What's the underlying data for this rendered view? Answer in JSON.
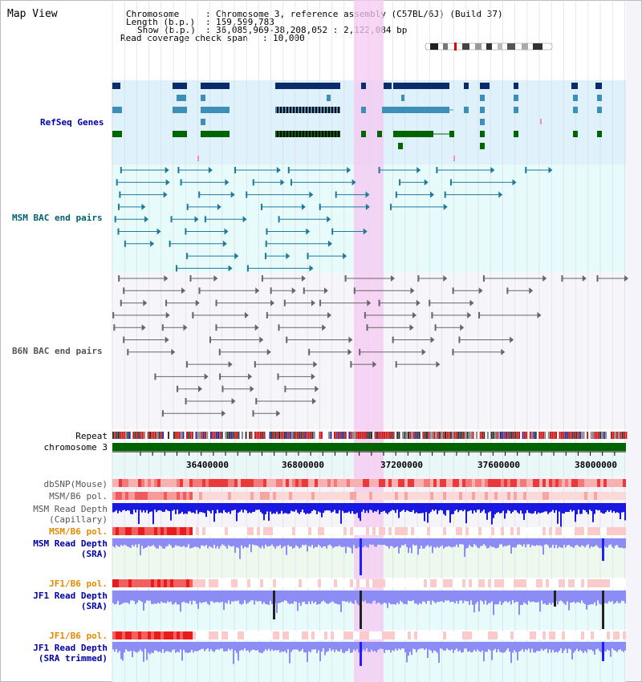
{
  "header": {
    "title": "Map View",
    "chromosome_label": "Chromosome",
    "chromosome_value": "Chromosome 3, reference assembly (C57BL/6J) (Build 37)",
    "length_label": "Length (b.p.)",
    "length_value": "159,599,783",
    "show_label": "Show (b.p.)",
    "show_value": "36,085,969-38,208,052 : 2,122,084 bp",
    "coverage_label": "Read coverage check span",
    "coverage_value": "10,000"
  },
  "tracks": {
    "refseq": "RefSeq Genes",
    "msm_bac": "MSM BAC end pairs",
    "b6n_bac": "B6N BAC end pairs",
    "repeat": "Repeat",
    "chromosome": "chromosome 3",
    "dbsnp": "dbSNP(Mouse)",
    "msm_b6_pol_1": "MSM/B6 pol.",
    "msm_read_depth_cap_1": "MSM Read Depth",
    "msm_read_depth_cap_2": "(Capillary)",
    "msm_b6_pol_2": "MSM/B6 pol.",
    "msm_read_depth_sra_1": "MSM Read Depth",
    "msm_read_depth_sra_2": "(SRA)",
    "jf1_b6_pol_1": "JF1/B6 pol.",
    "jf1_read_depth_sra_1": "JF1 Read Depth",
    "jf1_read_depth_sra_2": "(SRA)",
    "jf1_b6_pol_2": "JF1/B6 pol.",
    "jf1_read_depth_trim_1": "JF1 Read Depth",
    "jf1_read_depth_trim_2": "(SRA trimmed)"
  },
  "axis": {
    "ticks": [
      "36400000",
      "36800000",
      "37200000",
      "37600000",
      "38000000"
    ]
  },
  "colors": {
    "refseq_bg": "#dff1fb",
    "msm_bg": "#e8fbfb",
    "gene_dark": "#0b2c6b",
    "gene_teal": "#3d8fb7",
    "gene_green": "#006400",
    "highlight": "#f5c8f2",
    "chromosome_bar": "#006400",
    "label_blue": "#0000aa",
    "label_orange": "#e68a00",
    "label_teal": "#006070"
  }
}
